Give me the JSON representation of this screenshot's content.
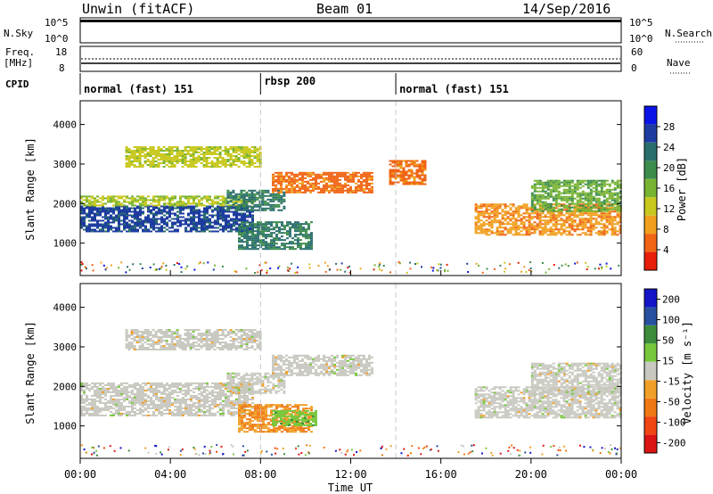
{
  "header": {
    "station": "Unwin (fitACF)",
    "beam": "Beam 01",
    "date": "14/Sep/2016"
  },
  "status_panels": {
    "nsky_label": "N.Sky",
    "nsearch_label": "N.Search",
    "log_ticks": [
      "10^5",
      "10^0"
    ],
    "freq_label_line1": "Freq.",
    "freq_label_line2": "[MHz]",
    "freq_ticks": [
      "18",
      "8"
    ],
    "nave_label": "Nave",
    "nave_ticks": [
      "60",
      "0"
    ],
    "cpid_label": "CPID"
  },
  "cpid_segments": [
    {
      "start": 0,
      "end": 8,
      "label": "normal (fast) 151"
    },
    {
      "start": 8,
      "end": 14,
      "label": "rbsp 200"
    },
    {
      "start": 14,
      "end": 24,
      "label": "normal (fast) 151"
    }
  ],
  "colors": {
    "power_scale": [
      "#0a14e6",
      "#1e3ca0",
      "#2a6e6e",
      "#3c8c4c",
      "#78b432",
      "#c8c81e",
      "#f0a01e",
      "#f06414",
      "#e61e0a"
    ],
    "velocity_scale": [
      "#1414c8",
      "#2850a0",
      "#3c8c3c",
      "#78c83c",
      "#c8c8c0",
      "#f0a028",
      "#f07814",
      "#f04614",
      "#dc1414"
    ]
  },
  "chart_data": [
    {
      "type": "heatmap",
      "name": "power",
      "xlabel": "",
      "ylabel": "Slant Range [km]",
      "xlim": [
        0,
        24
      ],
      "ylim": [
        180,
        4600
      ],
      "yticks": [
        1000,
        2000,
        3000,
        4000
      ],
      "colorbar_label": "Power [dB]",
      "colorbar_ticks": [
        "4",
        "8",
        "12",
        "16",
        "20",
        "24",
        "28"
      ],
      "colorbar_range": [
        0,
        32
      ],
      "bands": [
        {
          "t_start": 0.0,
          "t_end": 7.7,
          "r_min": 1280,
          "r_max": 1950,
          "value": 26
        },
        {
          "t_start": 0.0,
          "t_end": 7.7,
          "r_min": 1950,
          "r_max": 2200,
          "value": 14
        },
        {
          "t_start": 2.0,
          "t_end": 8.0,
          "r_min": 2950,
          "r_max": 3450,
          "value": 13
        },
        {
          "t_start": 6.5,
          "t_end": 9.0,
          "r_min": 1850,
          "r_max": 2350,
          "value": 22
        },
        {
          "t_start": 7.0,
          "t_end": 10.3,
          "r_min": 850,
          "r_max": 1550,
          "value": 22
        },
        {
          "t_start": 8.5,
          "t_end": 13.0,
          "r_min": 2300,
          "r_max": 2800,
          "value": 6
        },
        {
          "t_start": 13.7,
          "t_end": 15.3,
          "r_min": 2500,
          "r_max": 3100,
          "value": 6
        },
        {
          "t_start": 17.5,
          "t_end": 24.0,
          "r_min": 1200,
          "r_max": 2000,
          "value": 8
        },
        {
          "t_start": 20.0,
          "t_end": 24.0,
          "r_min": 1800,
          "r_max": 2600,
          "value": 17
        }
      ]
    },
    {
      "type": "heatmap",
      "name": "velocity",
      "xlabel": "Time UT",
      "ylabel": "Slant Range [km]",
      "xlim": [
        0,
        24
      ],
      "ylim": [
        180,
        4600
      ],
      "yticks": [
        1000,
        2000,
        3000,
        4000
      ],
      "xticks": [
        "00:00",
        "04:00",
        "08:00",
        "12:00",
        "16:00",
        "20:00",
        "00:00"
      ],
      "colorbar_label": "Velocity [m s⁻¹]",
      "colorbar_ticks": [
        "200",
        "100",
        "50",
        "15",
        "-15",
        "-50",
        "-100",
        "-200"
      ],
      "colorbar_range": [
        -250,
        250
      ],
      "bands": [
        {
          "t_start": 0.0,
          "t_end": 7.7,
          "r_min": 1280,
          "r_max": 2100,
          "value": 0
        },
        {
          "t_start": 2.0,
          "t_end": 8.0,
          "r_min": 2950,
          "r_max": 3450,
          "value": 0
        },
        {
          "t_start": 6.5,
          "t_end": 9.0,
          "r_min": 1850,
          "r_max": 2350,
          "value": 0
        },
        {
          "t_start": 7.0,
          "t_end": 10.3,
          "r_min": 850,
          "r_max": 1550,
          "value": -80
        },
        {
          "t_start": 8.5,
          "t_end": 10.5,
          "r_min": 1000,
          "r_max": 1400,
          "value": 60
        },
        {
          "t_start": 8.5,
          "t_end": 13.0,
          "r_min": 2300,
          "r_max": 2800,
          "value": 0
        },
        {
          "t_start": 17.5,
          "t_end": 24.0,
          "r_min": 1200,
          "r_max": 2000,
          "value": 0
        },
        {
          "t_start": 20.0,
          "t_end": 24.0,
          "r_min": 1800,
          "r_max": 2600,
          "value": 0
        }
      ]
    }
  ]
}
